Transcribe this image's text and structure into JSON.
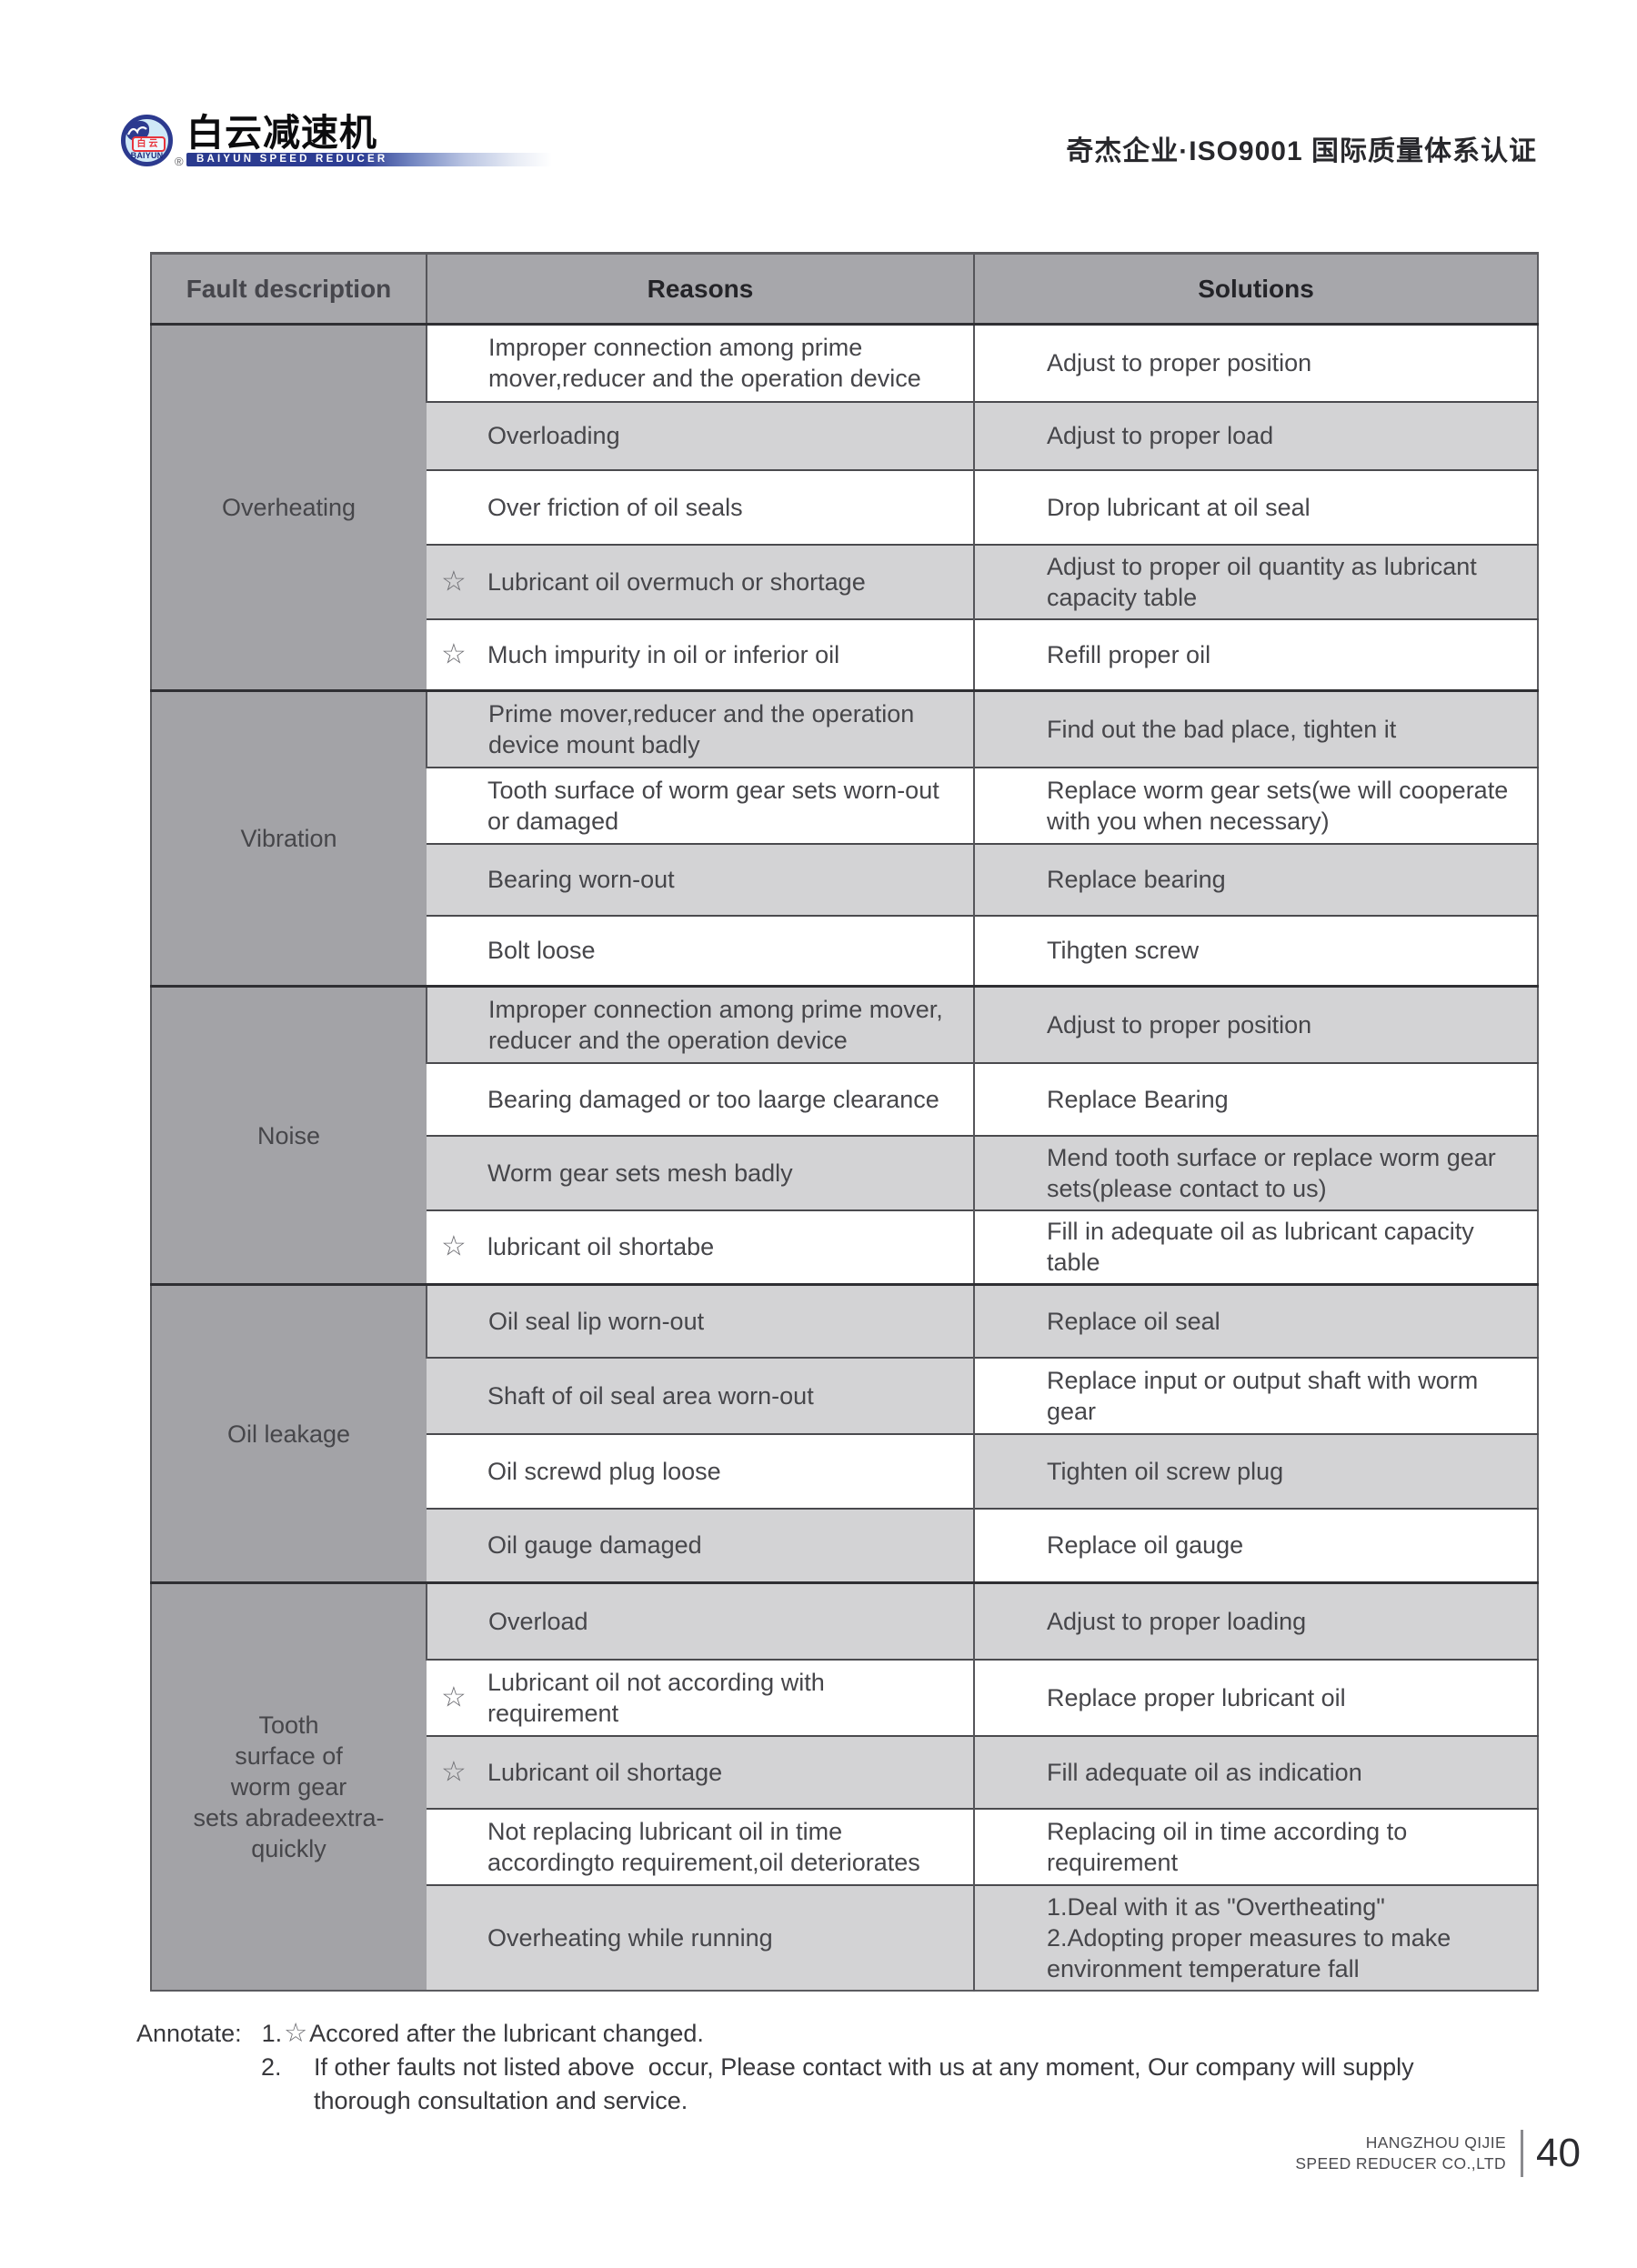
{
  "brand": {
    "logo_circle_cn": "白云",
    "logo_circle_en": "BAIYUN",
    "registered_mark": "®",
    "title_cn": "白云减速机",
    "subtitle_en": "BAIYUN SPEED REDUCER",
    "colors": {
      "navy": "#2c3a8f",
      "red": "#e8343c",
      "light_blue": "#cfe9f7"
    }
  },
  "header": {
    "certification": "奇杰企业·ISO9001 国际质量体系认证"
  },
  "table": {
    "columns": [
      "Fault description",
      "Reasons",
      "Solutions"
    ],
    "star_glyph": "☆",
    "colors": {
      "header_gray": "#a7a7ab",
      "fault_gray": "#a3a3a7",
      "zebra_gray": "#d3d3d5",
      "white": "#ffffff"
    },
    "groups": [
      {
        "fault": "Overheating",
        "rows": [
          {
            "star": false,
            "reason": "Improper connection among prime mover,reducer and the operation device",
            "solution": "Adjust to proper position",
            "bg": [
              "w",
              "w"
            ],
            "h": 85
          },
          {
            "star": false,
            "reason": "Overloading",
            "solution": "Adjust to proper load",
            "bg": [
              "g",
              "g"
            ],
            "h": 75
          },
          {
            "star": false,
            "reason": "Over friction of oil seals",
            "solution": "Drop lubricant at oil seal",
            "bg": [
              "w",
              "w"
            ],
            "h": 82
          },
          {
            "star": true,
            "reason": "Lubricant oil overmuch or shortage",
            "solution": "Adjust to proper oil quantity as lubricant capacity table",
            "bg": [
              "g",
              "g"
            ],
            "h": 82
          },
          {
            "star": true,
            "reason": "Much impurity in oil or inferior oil",
            "solution": "Refill proper oil",
            "bg": [
              "w",
              "w"
            ],
            "h": 79
          }
        ]
      },
      {
        "fault": "Vibration",
        "rows": [
          {
            "star": false,
            "reason": "Prime mover,reducer and the operation device mount badly",
            "solution": "Find out the bad place, tighten it",
            "bg": [
              "g",
              "g"
            ],
            "h": 84
          },
          {
            "star": false,
            "reason": "Tooth surface of worm gear sets worn-out or damaged",
            "solution": "Replace worm gear sets(we will cooperate with you when necessary)",
            "bg": [
              "w",
              "w"
            ],
            "h": 84
          },
          {
            "star": false,
            "reason": "Bearing worn-out",
            "solution": "Replace bearing",
            "bg": [
              "g",
              "g"
            ],
            "h": 79
          },
          {
            "star": false,
            "reason": "Bolt loose",
            "solution": "Tihgten screw",
            "bg": [
              "w",
              "w"
            ],
            "h": 78
          }
        ]
      },
      {
        "fault": "Noise",
        "rows": [
          {
            "star": false,
            "reason": "Improper connection among prime mover, reducer and the operation device",
            "solution": "Adjust to proper position",
            "bg": [
              "g",
              "g"
            ],
            "h": 84
          },
          {
            "star": false,
            "reason": "Bearing damaged or too laarge clearance",
            "solution": "Replace Bearing",
            "bg": [
              "w",
              "w"
            ],
            "h": 80
          },
          {
            "star": false,
            "reason": "Worm gear sets mesh badly",
            "solution": "Mend tooth surface or replace worm gear sets(please contact to us)",
            "bg": [
              "g",
              "g"
            ],
            "h": 82
          },
          {
            "star": true,
            "reason": "lubricant oil shortabe",
            "solution": "Fill in adequate oil as lubricant capacity table",
            "bg": [
              "w",
              "w"
            ],
            "h": 82
          }
        ]
      },
      {
        "fault": "Oil leakage",
        "rows": [
          {
            "star": false,
            "reason": "Oil seal lip worn-out",
            "solution": "Replace oil seal",
            "bg": [
              "g",
              "g"
            ],
            "h": 80
          },
          {
            "star": false,
            "reason": "Shaft of oil seal area worn-out",
            "solution": "Replace input or output shaft with worm gear",
            "bg": [
              "g",
              "w"
            ],
            "h": 84
          },
          {
            "star": false,
            "reason": "Oil screwd plug loose",
            "solution": "Tighten oil screw plug",
            "bg": [
              "w",
              "g"
            ],
            "h": 82
          },
          {
            "star": false,
            "reason": "Oil gauge damaged",
            "solution": "Replace oil gauge",
            "bg": [
              "g",
              "w"
            ],
            "h": 82
          }
        ]
      },
      {
        "fault": "Tooth surface of worm gear sets abradeextra-quickly",
        "fault_lines": [
          "Tooth",
          "surface of",
          "worm gear",
          "sets abradeextra-",
          "quickly"
        ],
        "rows": [
          {
            "star": false,
            "reason": "Overload",
            "solution": "Adjust to proper loading",
            "bg": [
              "g",
              "g"
            ],
            "h": 84
          },
          {
            "star": true,
            "reason": "Lubricant oil not according with requirement",
            "solution": "Replace proper lubricant oil",
            "bg": [
              "w",
              "w"
            ],
            "h": 84
          },
          {
            "star": true,
            "reason": "Lubricant oil shortage",
            "solution": "Fill adequate oil as indication",
            "bg": [
              "g",
              "g"
            ],
            "h": 80
          },
          {
            "star": false,
            "reason": "Not replacing lubricant oil in time accordingto requirement,oil deteriorates",
            "solution": "Replacing oil in time according to requirement",
            "bg": [
              "w",
              "w"
            ],
            "h": 84
          },
          {
            "star": false,
            "reason": "Overheating while running",
            "solution": "1.Deal with it as \"Overtheating\" 2.Adopting proper measures to make environment temperature fall",
            "solution_lines": [
              "1.Deal with it as \"Overtheating\"",
              "2.Adopting proper measures to make environment temperature fall"
            ],
            "bg": [
              "g",
              "g"
            ],
            "h": 116
          }
        ]
      }
    ]
  },
  "annotate": {
    "label": "Annotate:",
    "star": "☆",
    "item1_no": "1.",
    "item1_text": "Accored after the lubricant changed.",
    "item2_no": "2.",
    "item2_text": "If other faults not listed above  occur, Please contact with us at any moment, Our company will supply",
    "item2_text2": "thorough consultation and service."
  },
  "footer": {
    "company_line1": "HANGZHOU QIJIE",
    "company_line2": "SPEED REDUCER CO.,LTD",
    "page_number": "40"
  }
}
